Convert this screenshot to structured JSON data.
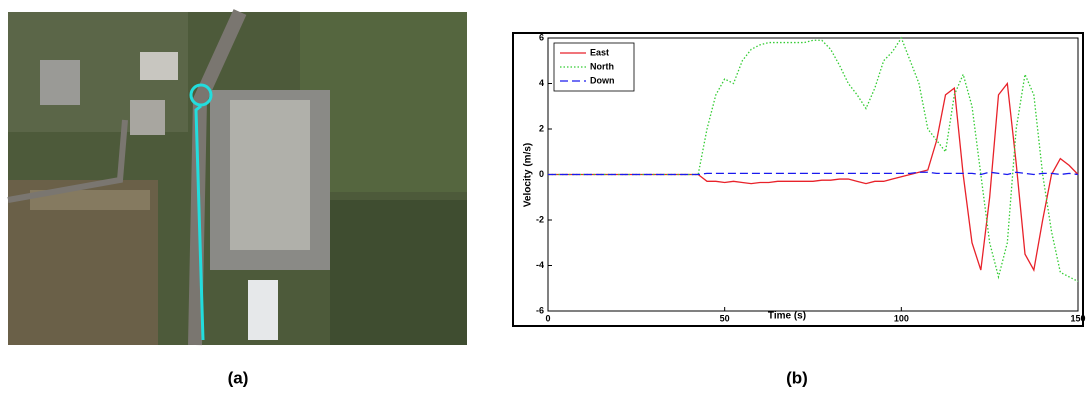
{
  "captions": [
    "(a)",
    "(b)"
  ],
  "chart_data": {
    "type": "line",
    "xlabel": "Time (s)",
    "ylabel": "Velocity (m/s)",
    "xlim": [
      0,
      150
    ],
    "xticks": [
      0,
      50,
      100,
      150
    ],
    "ylim": [
      -6,
      6
    ],
    "yticks": [
      -6,
      -4,
      -2,
      0,
      2,
      4,
      6
    ],
    "legend": "upper left",
    "x": [
      0,
      2.5,
      5,
      7.5,
      10,
      12.5,
      15,
      17.5,
      20,
      22.5,
      25,
      27.5,
      30,
      32.5,
      35,
      37.5,
      40,
      42.5,
      45,
      47.5,
      50,
      52.5,
      55,
      57.5,
      60,
      62.5,
      65,
      67.5,
      70,
      72.5,
      75,
      77.5,
      80,
      82.5,
      85,
      87.5,
      90,
      92.5,
      95,
      97.5,
      100,
      102.5,
      105,
      107.5,
      110,
      112.5,
      115,
      117.5,
      120,
      122.5,
      125,
      127.5,
      130,
      132.5,
      135,
      137.5,
      140,
      142.5,
      145,
      147.5,
      150
    ],
    "series": [
      {
        "name": "East",
        "color": "#e8222a",
        "style": "solid",
        "values": [
          0,
          0,
          0,
          0,
          0,
          0,
          0,
          0,
          0,
          0,
          0,
          0,
          0,
          0,
          0,
          0,
          0,
          0,
          -0.3,
          -0.3,
          -0.35,
          -0.3,
          -0.35,
          -0.4,
          -0.35,
          -0.35,
          -0.3,
          -0.3,
          -0.3,
          -0.3,
          -0.3,
          -0.25,
          -0.25,
          -0.2,
          -0.2,
          -0.3,
          -0.4,
          -0.3,
          -0.3,
          -0.2,
          -0.1,
          0,
          0.1,
          0.2,
          1.5,
          3.5,
          3.8,
          0,
          -3,
          -4.2,
          -1,
          3.5,
          4.0,
          0.5,
          -3.5,
          -4.2,
          -2,
          0,
          0.7,
          0.4,
          0
        ]
      },
      {
        "name": "North",
        "color": "#33cc33",
        "style": "dotted",
        "values": [
          0,
          0,
          0,
          0,
          0,
          0,
          0,
          0,
          0,
          0,
          0,
          0,
          0,
          0,
          0,
          0,
          0,
          0,
          2.0,
          3.5,
          4.2,
          4.0,
          5.0,
          5.5,
          5.7,
          5.8,
          5.8,
          5.8,
          5.8,
          5.8,
          5.9,
          5.9,
          5.5,
          4.8,
          4.0,
          3.5,
          2.9,
          3.8,
          5.0,
          5.4,
          6.0,
          5.0,
          4.0,
          2.0,
          1.5,
          1.0,
          3.5,
          4.4,
          3.0,
          0,
          -3,
          -4.5,
          -3,
          2,
          4.4,
          3.5,
          0,
          -2.5,
          -4.3,
          -4.5,
          -4.7
        ]
      },
      {
        "name": "Down",
        "color": "#1a1aee",
        "style": "dashed",
        "values": [
          0,
          0,
          0,
          0,
          0,
          0,
          0,
          0,
          0,
          0,
          0,
          0,
          0,
          0,
          0,
          0,
          0,
          0,
          0.05,
          0.05,
          0.05,
          0.05,
          0.05,
          0.05,
          0.05,
          0.05,
          0.05,
          0.05,
          0.05,
          0.05,
          0.05,
          0.05,
          0.05,
          0.05,
          0.05,
          0.05,
          0.05,
          0.05,
          0.05,
          0.05,
          0.05,
          0.05,
          0.1,
          0.1,
          0.05,
          0.05,
          0.05,
          0.05,
          0.05,
          0,
          0.1,
          0.05,
          0,
          0.1,
          0.05,
          0,
          0.05,
          0.05,
          0,
          0.05,
          0
        ]
      }
    ]
  }
}
